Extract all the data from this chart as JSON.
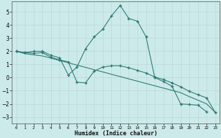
{
  "xlabel": "Humidex (Indice chaleur)",
  "background_color": "#cdeaea",
  "grid_color": "#b8d8d8",
  "line_color": "#2a7a72",
  "xlim": [
    -0.5,
    23.5
  ],
  "ylim": [
    -3.5,
    5.8
  ],
  "yticks": [
    -3,
    -2,
    -1,
    0,
    1,
    2,
    3,
    4,
    5
  ],
  "xticks": [
    0,
    1,
    2,
    3,
    4,
    5,
    6,
    7,
    8,
    9,
    10,
    11,
    12,
    13,
    14,
    15,
    16,
    17,
    18,
    19,
    20,
    21,
    22,
    23
  ],
  "line1_x": [
    0,
    1,
    2,
    3,
    4,
    5,
    6,
    7,
    8,
    9,
    10,
    11,
    12,
    13,
    14,
    15,
    16,
    17,
    18,
    19,
    20,
    21,
    22
  ],
  "line1_y": [
    2.0,
    1.9,
    2.0,
    2.0,
    1.7,
    1.5,
    0.2,
    0.8,
    2.2,
    3.1,
    3.7,
    4.7,
    5.5,
    4.5,
    4.3,
    3.1,
    0.0,
    -0.3,
    -0.65,
    -2.0,
    -2.05,
    -2.1,
    -2.6
  ],
  "line2_x": [
    0,
    1,
    2,
    3,
    4,
    5,
    6,
    7,
    8,
    9,
    10,
    11,
    12,
    13,
    14,
    15,
    16,
    17,
    18,
    19,
    20,
    21,
    22,
    23
  ],
  "line2_y": [
    2.0,
    1.9,
    1.85,
    1.9,
    1.55,
    1.35,
    1.2,
    -0.35,
    -0.4,
    0.5,
    0.8,
    0.9,
    0.9,
    0.75,
    0.55,
    0.35,
    0.05,
    -0.15,
    -0.4,
    -0.7,
    -1.05,
    -1.3,
    -1.55,
    -2.65
  ],
  "line3_x": [
    0,
    1,
    2,
    3,
    4,
    5,
    6,
    7,
    8,
    9,
    10,
    11,
    12,
    13,
    14,
    15,
    16,
    17,
    18,
    19,
    20,
    21,
    22,
    23
  ],
  "line3_y": [
    2.0,
    1.82,
    1.73,
    1.65,
    1.48,
    1.3,
    1.13,
    0.95,
    0.78,
    0.6,
    0.43,
    0.25,
    0.08,
    -0.1,
    -0.27,
    -0.45,
    -0.62,
    -0.8,
    -0.97,
    -1.15,
    -1.45,
    -1.72,
    -2.0,
    -2.65
  ]
}
